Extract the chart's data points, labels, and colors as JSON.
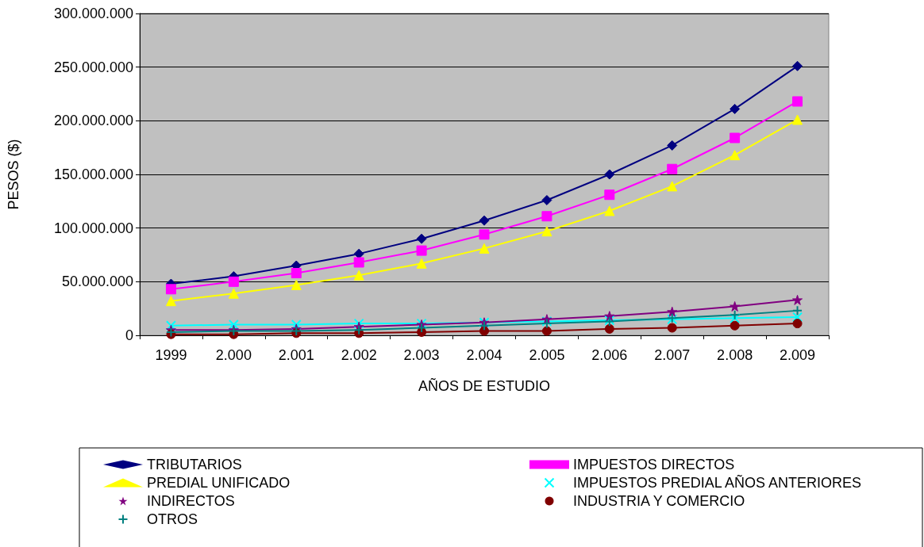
{
  "chart_data": {
    "type": "line",
    "xlabel": "AÑOS DE ESTUDIO",
    "ylabel": "PESOS ($)",
    "categories": [
      "1999",
      "2.000",
      "2.001",
      "2.002",
      "2.003",
      "2.004",
      "2.005",
      "2.006",
      "2.007",
      "2.008",
      "2.009"
    ],
    "series": [
      {
        "name": "TRIBUTARIOS",
        "color": "#000080",
        "marker": "diamond",
        "values": [
          48000000,
          55000000,
          65000000,
          76000000,
          90000000,
          107000000,
          126000000,
          150000000,
          177000000,
          211000000,
          251000000
        ]
      },
      {
        "name": "IMPUESTOS DIRECTOS",
        "color": "#ff00ff",
        "marker": "square",
        "values": [
          43000000,
          50000000,
          58000000,
          68000000,
          79000000,
          94000000,
          111000000,
          131000000,
          155000000,
          184000000,
          218000000
        ]
      },
      {
        "name": "PREDIAL UNIFICADO",
        "color": "#ffff00",
        "marker": "triangle",
        "values": [
          32000000,
          39000000,
          47000000,
          56000000,
          67000000,
          81000000,
          97000000,
          116000000,
          139000000,
          168000000,
          201000000
        ]
      },
      {
        "name": "IMPUESTOS PREDIAL AÑOS ANTERIORES",
        "color": "#00ffff",
        "marker": "cross",
        "values": [
          9000000,
          10000000,
          10000000,
          11000000,
          11000000,
          12000000,
          13000000,
          14000000,
          15000000,
          16000000,
          17000000
        ]
      },
      {
        "name": "INDIRECTOS",
        "color": "#800080",
        "marker": "star",
        "values": [
          5000000,
          5000000,
          6000000,
          8000000,
          10000000,
          12000000,
          15000000,
          18000000,
          22000000,
          27000000,
          33000000
        ]
      },
      {
        "name": "INDUSTRIA Y COMERCIO",
        "color": "#800000",
        "marker": "circle",
        "values": [
          1000000,
          1000000,
          2000000,
          2000000,
          3000000,
          4000000,
          4000000,
          6000000,
          7000000,
          9000000,
          11000000
        ]
      },
      {
        "name": "OTROS",
        "color": "#008080",
        "marker": "cross",
        "values": [
          3000000,
          4000000,
          4000000,
          5000000,
          7000000,
          9000000,
          11000000,
          13000000,
          16000000,
          19000000,
          23000000
        ]
      }
    ],
    "ylim": [
      0,
      300000000
    ],
    "yticks": [
      {
        "value": 0,
        "label": "0"
      },
      {
        "value": 50000000,
        "label": "50.000.000"
      },
      {
        "value": 100000000,
        "label": "100.000.000"
      },
      {
        "value": 150000000,
        "label": "150.000.000"
      },
      {
        "value": 200000000,
        "label": "200.000.000"
      },
      {
        "value": 250000000,
        "label": "250.000.000"
      },
      {
        "value": 300000000,
        "label": "300.000.000"
      }
    ],
    "grid": "y",
    "legend": "bottom",
    "line_style": "solid"
  }
}
